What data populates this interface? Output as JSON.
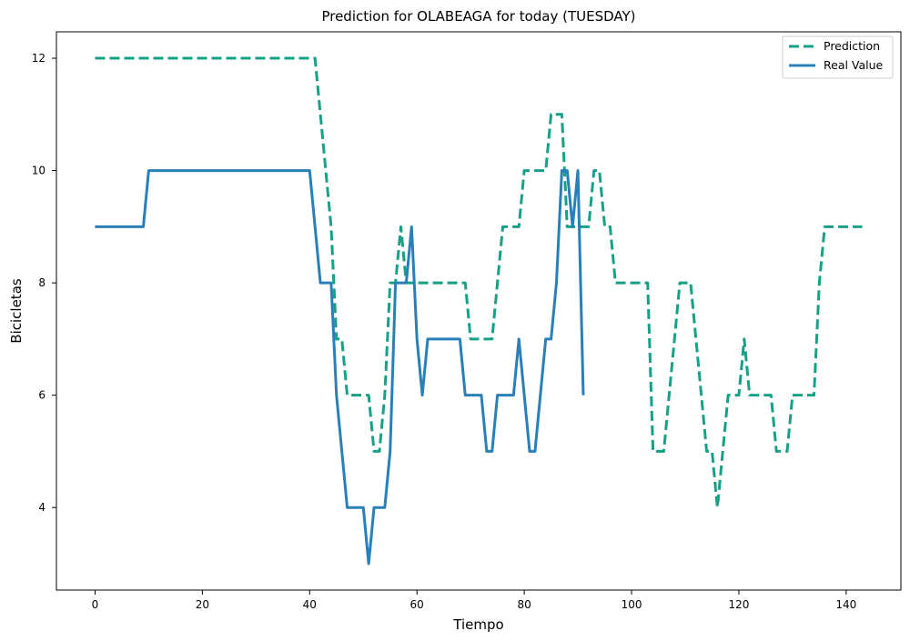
{
  "chart_data": {
    "type": "line",
    "title": "Prediction for OLABEAGA for today (TUESDAY)",
    "xlabel": "Tiempo",
    "ylabel": "Bicicletas",
    "xlim": [
      -7.2,
      150.2
    ],
    "ylim": [
      2.53,
      12.47
    ],
    "xticks": [
      0,
      20,
      40,
      60,
      80,
      100,
      120,
      140
    ],
    "yticks": [
      4,
      6,
      8,
      10,
      12
    ],
    "grid": false,
    "legend_position": "top-right",
    "series": [
      {
        "name": "Prediction",
        "color": "#16a085",
        "style": "dashed",
        "x": [
          0,
          1,
          2,
          3,
          4,
          5,
          6,
          7,
          8,
          9,
          10,
          11,
          12,
          13,
          14,
          15,
          16,
          17,
          18,
          19,
          20,
          21,
          22,
          23,
          24,
          25,
          26,
          27,
          28,
          29,
          30,
          31,
          32,
          33,
          34,
          35,
          36,
          37,
          38,
          39,
          40,
          41,
          42,
          43,
          44,
          45,
          46,
          47,
          48,
          49,
          50,
          51,
          52,
          53,
          54,
          55,
          56,
          57,
          58,
          59,
          60,
          61,
          62,
          63,
          64,
          65,
          66,
          67,
          68,
          69,
          70,
          71,
          72,
          73,
          74,
          75,
          76,
          77,
          78,
          79,
          80,
          81,
          82,
          83,
          84,
          85,
          86,
          87,
          88,
          89,
          90,
          91,
          92,
          93,
          94,
          95,
          96,
          97,
          98,
          99,
          100,
          101,
          102,
          103,
          104,
          105,
          106,
          107,
          108,
          109,
          110,
          111,
          112,
          113,
          114,
          115,
          116,
          117,
          118,
          119,
          120,
          121,
          122,
          123,
          124,
          125,
          126,
          127,
          128,
          129,
          130,
          131,
          132,
          133,
          134,
          135,
          136,
          137,
          138,
          139,
          140,
          141,
          142,
          143
        ],
        "values": [
          12,
          12,
          12,
          12,
          12,
          12,
          12,
          12,
          12,
          12,
          12,
          12,
          12,
          12,
          12,
          12,
          12,
          12,
          12,
          12,
          12,
          12,
          12,
          12,
          12,
          12,
          12,
          12,
          12,
          12,
          12,
          12,
          12,
          12,
          12,
          12,
          12,
          12,
          12,
          12,
          12,
          12,
          11,
          10,
          9,
          7,
          7,
          6,
          6,
          6,
          6,
          6,
          5,
          5,
          6,
          8,
          8,
          9,
          8,
          8,
          8,
          8,
          8,
          8,
          8,
          8,
          8,
          8,
          8,
          8,
          7,
          7,
          7,
          7,
          7,
          8,
          9,
          9,
          9,
          9,
          10,
          10,
          10,
          10,
          10,
          11,
          11,
          11,
          9,
          9,
          9,
          9,
          9,
          10,
          10,
          9,
          9,
          8,
          8,
          8,
          8,
          8,
          8,
          8,
          5,
          5,
          5,
          6,
          7,
          8,
          8,
          8,
          7,
          6,
          5,
          5,
          4,
          5,
          6,
          6,
          6,
          7,
          6,
          6,
          6,
          6,
          6,
          5,
          5,
          5,
          6,
          6,
          6,
          6,
          6,
          8,
          9,
          9,
          9,
          9,
          9,
          9,
          9,
          9
        ]
      },
      {
        "name": "Real Value",
        "color": "#2980b9",
        "style": "solid",
        "x": [
          0,
          1,
          2,
          3,
          4,
          5,
          6,
          7,
          8,
          9,
          10,
          11,
          12,
          13,
          14,
          15,
          16,
          17,
          18,
          19,
          20,
          21,
          22,
          23,
          24,
          25,
          26,
          27,
          28,
          29,
          30,
          31,
          32,
          33,
          34,
          35,
          36,
          37,
          38,
          39,
          40,
          41,
          42,
          43,
          44,
          45,
          46,
          47,
          48,
          49,
          50,
          51,
          52,
          53,
          54,
          55,
          56,
          57,
          58,
          59,
          60,
          61,
          62,
          63,
          64,
          65,
          66,
          67,
          68,
          69,
          70,
          71,
          72,
          73,
          74,
          75,
          76,
          77,
          78,
          79,
          80,
          81,
          82,
          83,
          84,
          85,
          86,
          87,
          88,
          89,
          90,
          91
        ],
        "values": [
          9,
          9,
          9,
          9,
          9,
          9,
          9,
          9,
          9,
          9,
          10,
          10,
          10,
          10,
          10,
          10,
          10,
          10,
          10,
          10,
          10,
          10,
          10,
          10,
          10,
          10,
          10,
          10,
          10,
          10,
          10,
          10,
          10,
          10,
          10,
          10,
          10,
          10,
          10,
          10,
          10,
          9,
          8,
          8,
          8,
          6,
          5,
          4,
          4,
          4,
          4,
          3,
          4,
          4,
          4,
          5,
          8,
          8,
          8,
          9,
          7,
          6,
          7,
          7,
          7,
          7,
          7,
          7,
          7,
          6,
          6,
          6,
          6,
          5,
          5,
          6,
          6,
          6,
          6,
          7,
          6,
          5,
          5,
          6,
          7,
          7,
          8,
          10,
          10,
          9,
          10,
          6
        ]
      }
    ]
  }
}
